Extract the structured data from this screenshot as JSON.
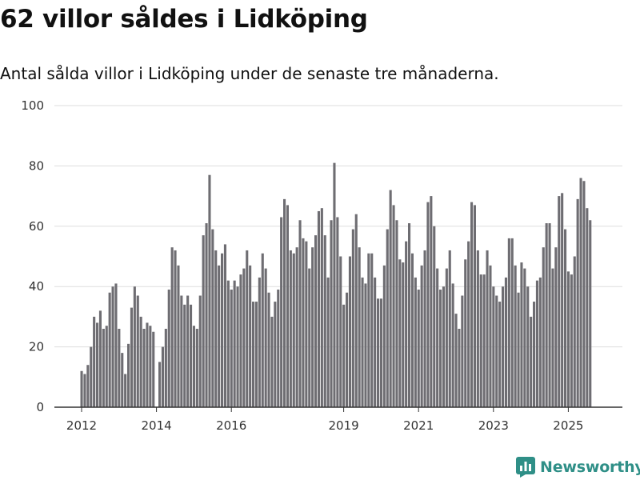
{
  "title": "62 villor såldes i Lidköping",
  "subtitle": "Antal sålda villor i Lidköping under de senaste tre månaderna.",
  "brand": {
    "name": "Newsworthy"
  },
  "colors": {
    "bar": "#6e6d72",
    "highlight": "#1f9a8a",
    "grid": "#dddddd",
    "axis": "#333333",
    "brand": "#2f8f87"
  },
  "chart_data": {
    "type": "bar",
    "title": "",
    "xlabel": "",
    "ylabel": "",
    "ylim": [
      0,
      100
    ],
    "yticks": [
      0,
      20,
      40,
      60,
      80,
      100
    ],
    "grid": true,
    "x_start": "2012-01",
    "xtick_labels": [
      {
        "label": "2012",
        "month": "2012-01"
      },
      {
        "label": "2014",
        "month": "2014-01"
      },
      {
        "label": "2016",
        "month": "2016-01"
      },
      {
        "label": "2019",
        "month": "2019-01"
      },
      {
        "label": "2021",
        "month": "2021-01"
      },
      {
        "label": "2023",
        "month": "2023-01"
      },
      {
        "label": "2025",
        "month": "2025-01"
      }
    ],
    "values": [
      12,
      11,
      14,
      20,
      30,
      28,
      32,
      26,
      27,
      38,
      40,
      41,
      26,
      18,
      11,
      21,
      33,
      40,
      37,
      30,
      26,
      28,
      27,
      25,
      0,
      15,
      20,
      26,
      39,
      53,
      52,
      47,
      37,
      34,
      37,
      34,
      27,
      26,
      37,
      57,
      61,
      77,
      59,
      52,
      47,
      51,
      54,
      42,
      39,
      42,
      40,
      44,
      46,
      52,
      47,
      35,
      35,
      43,
      51,
      46,
      38,
      30,
      35,
      39,
      63,
      69,
      67,
      52,
      51,
      53,
      62,
      56,
      55,
      46,
      53,
      57,
      65,
      66,
      57,
      43,
      62,
      81,
      63,
      50,
      34,
      38,
      50,
      59,
      64,
      53,
      43,
      41,
      51,
      51,
      43,
      36,
      36,
      47,
      59,
      72,
      67,
      62,
      49,
      48,
      55,
      61,
      51,
      43,
      39,
      47,
      52,
      68,
      70,
      60,
      46,
      39,
      40,
      46,
      52,
      41,
      31,
      26,
      37,
      49,
      55,
      68,
      67,
      52,
      44,
      44,
      52,
      47,
      40,
      37,
      35,
      40,
      43,
      56,
      56,
      47,
      38,
      48,
      46,
      40,
      30,
      35,
      42,
      43,
      53,
      61,
      61,
      46,
      53,
      70,
      71,
      59,
      45,
      44,
      50,
      69,
      76,
      75,
      66,
      62
    ],
    "highlight_index": 165,
    "annotation": "62"
  }
}
